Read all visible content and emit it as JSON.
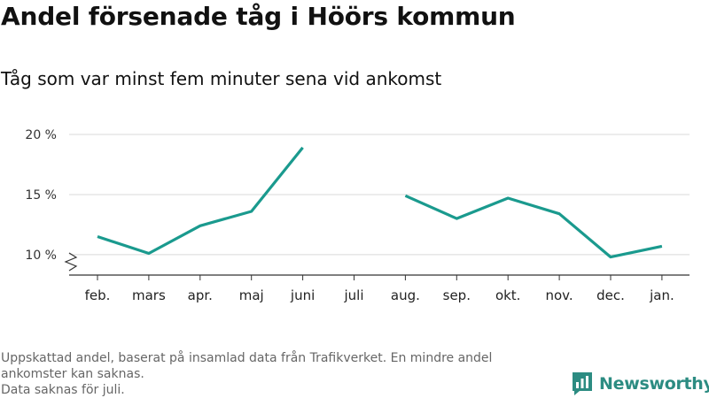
{
  "header": {
    "title": "Andel försenade tåg i Höörs kommun",
    "subtitle": "Tåg som var minst fem minuter sena vid ankomst"
  },
  "footer": {
    "note_line1": "Uppskattad andel, baserat på insamlad data från Trafikverket. En mindre andel",
    "note_line2": "ankomster kan saknas.",
    "note_line3": "Data saknas för juli.",
    "brand": "Newsworthy",
    "brand_color": "#2c8c82",
    "brand_icon": "bar-chart-logo-icon"
  },
  "chart_data": {
    "type": "line",
    "categories": [
      "feb.",
      "mars",
      "apr.",
      "maj",
      "juni",
      "juli",
      "aug.",
      "sep.",
      "okt.",
      "nov.",
      "dec.",
      "jan."
    ],
    "series": [
      {
        "values": [
          11.5,
          10.1,
          12.4,
          13.6,
          18.9,
          null,
          14.9,
          13.0,
          14.7,
          13.4,
          9.8,
          10.7
        ],
        "color": "#1a9a8e"
      }
    ],
    "yticks": [
      10,
      15,
      20
    ],
    "ytick_labels": [
      "10 %",
      "15 %",
      "20 %"
    ],
    "ylim": [
      8.3,
      20
    ],
    "y_axis_break": true,
    "grid": true,
    "legend": "none",
    "xlabel": "",
    "ylabel": ""
  }
}
